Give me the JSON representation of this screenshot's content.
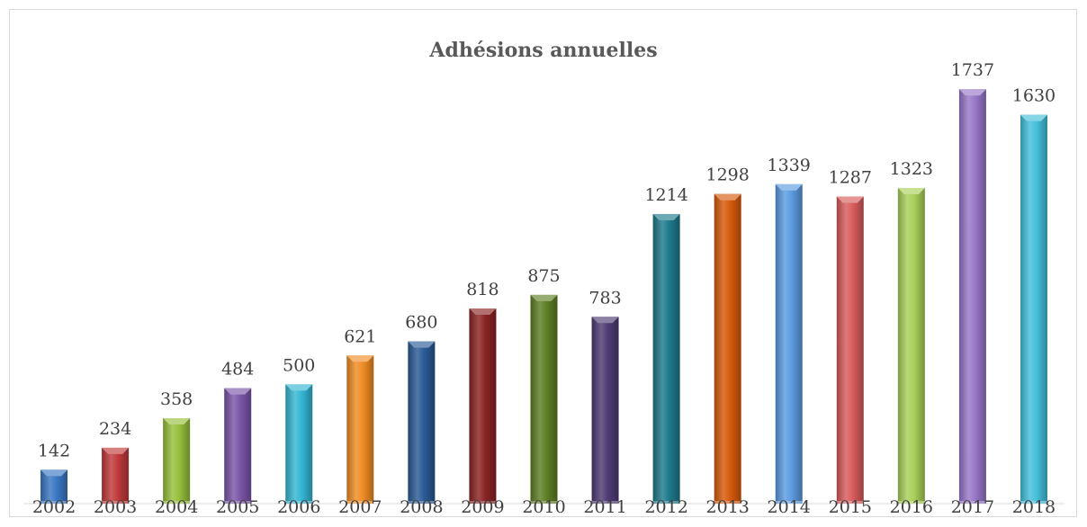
{
  "chart_data": {
    "type": "bar",
    "title": "Adhésions annuelles",
    "categories": [
      "2002",
      "2003",
      "2004",
      "2005",
      "2006",
      "2007",
      "2008",
      "2009",
      "2010",
      "2011",
      "2012",
      "2013",
      "2014",
      "2015",
      "2016",
      "2017",
      "2018"
    ],
    "values": [
      142,
      234,
      358,
      484,
      500,
      621,
      680,
      818,
      875,
      783,
      1214,
      1298,
      1339,
      1287,
      1323,
      1737,
      1630
    ],
    "colors": [
      "#3a78c4",
      "#c0393b",
      "#96bf3c",
      "#7b55a8",
      "#35b6d4",
      "#f08c24",
      "#2a5a96",
      "#8a2323",
      "#5e7f25",
      "#4e3b73",
      "#1e7a8c",
      "#d65a0c",
      "#5b9be0",
      "#d85c5c",
      "#a9d05a",
      "#9877c8",
      "#45c0dc"
    ],
    "ylim": [
      0,
      1900
    ],
    "xlabel": "",
    "ylabel": "",
    "grid": false,
    "legend": false
  }
}
